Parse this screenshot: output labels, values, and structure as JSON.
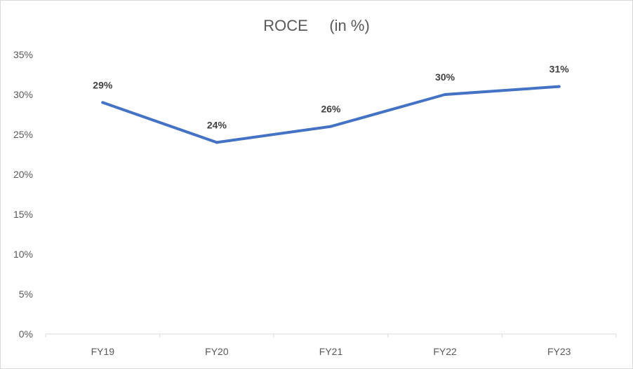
{
  "chart_data": {
    "type": "line",
    "title": "ROCE     (in %)",
    "xlabel": "",
    "ylabel": "",
    "categories": [
      "FY19",
      "FY20",
      "FY21",
      "FY22",
      "FY23"
    ],
    "series": [
      {
        "values": [
          29,
          24,
          26,
          30,
          31
        ],
        "data_labels": [
          "29%",
          "24%",
          "26%",
          "30%",
          "31%"
        ],
        "color": "#4472c4"
      }
    ],
    "ylim": [
      0,
      35
    ],
    "y_ticks": [
      0,
      5,
      10,
      15,
      20,
      25,
      30,
      35
    ],
    "y_tick_labels": [
      "0%",
      "5%",
      "10%",
      "15%",
      "20%",
      "25%",
      "30%",
      "35%"
    ],
    "grid": false,
    "legend": "none"
  }
}
